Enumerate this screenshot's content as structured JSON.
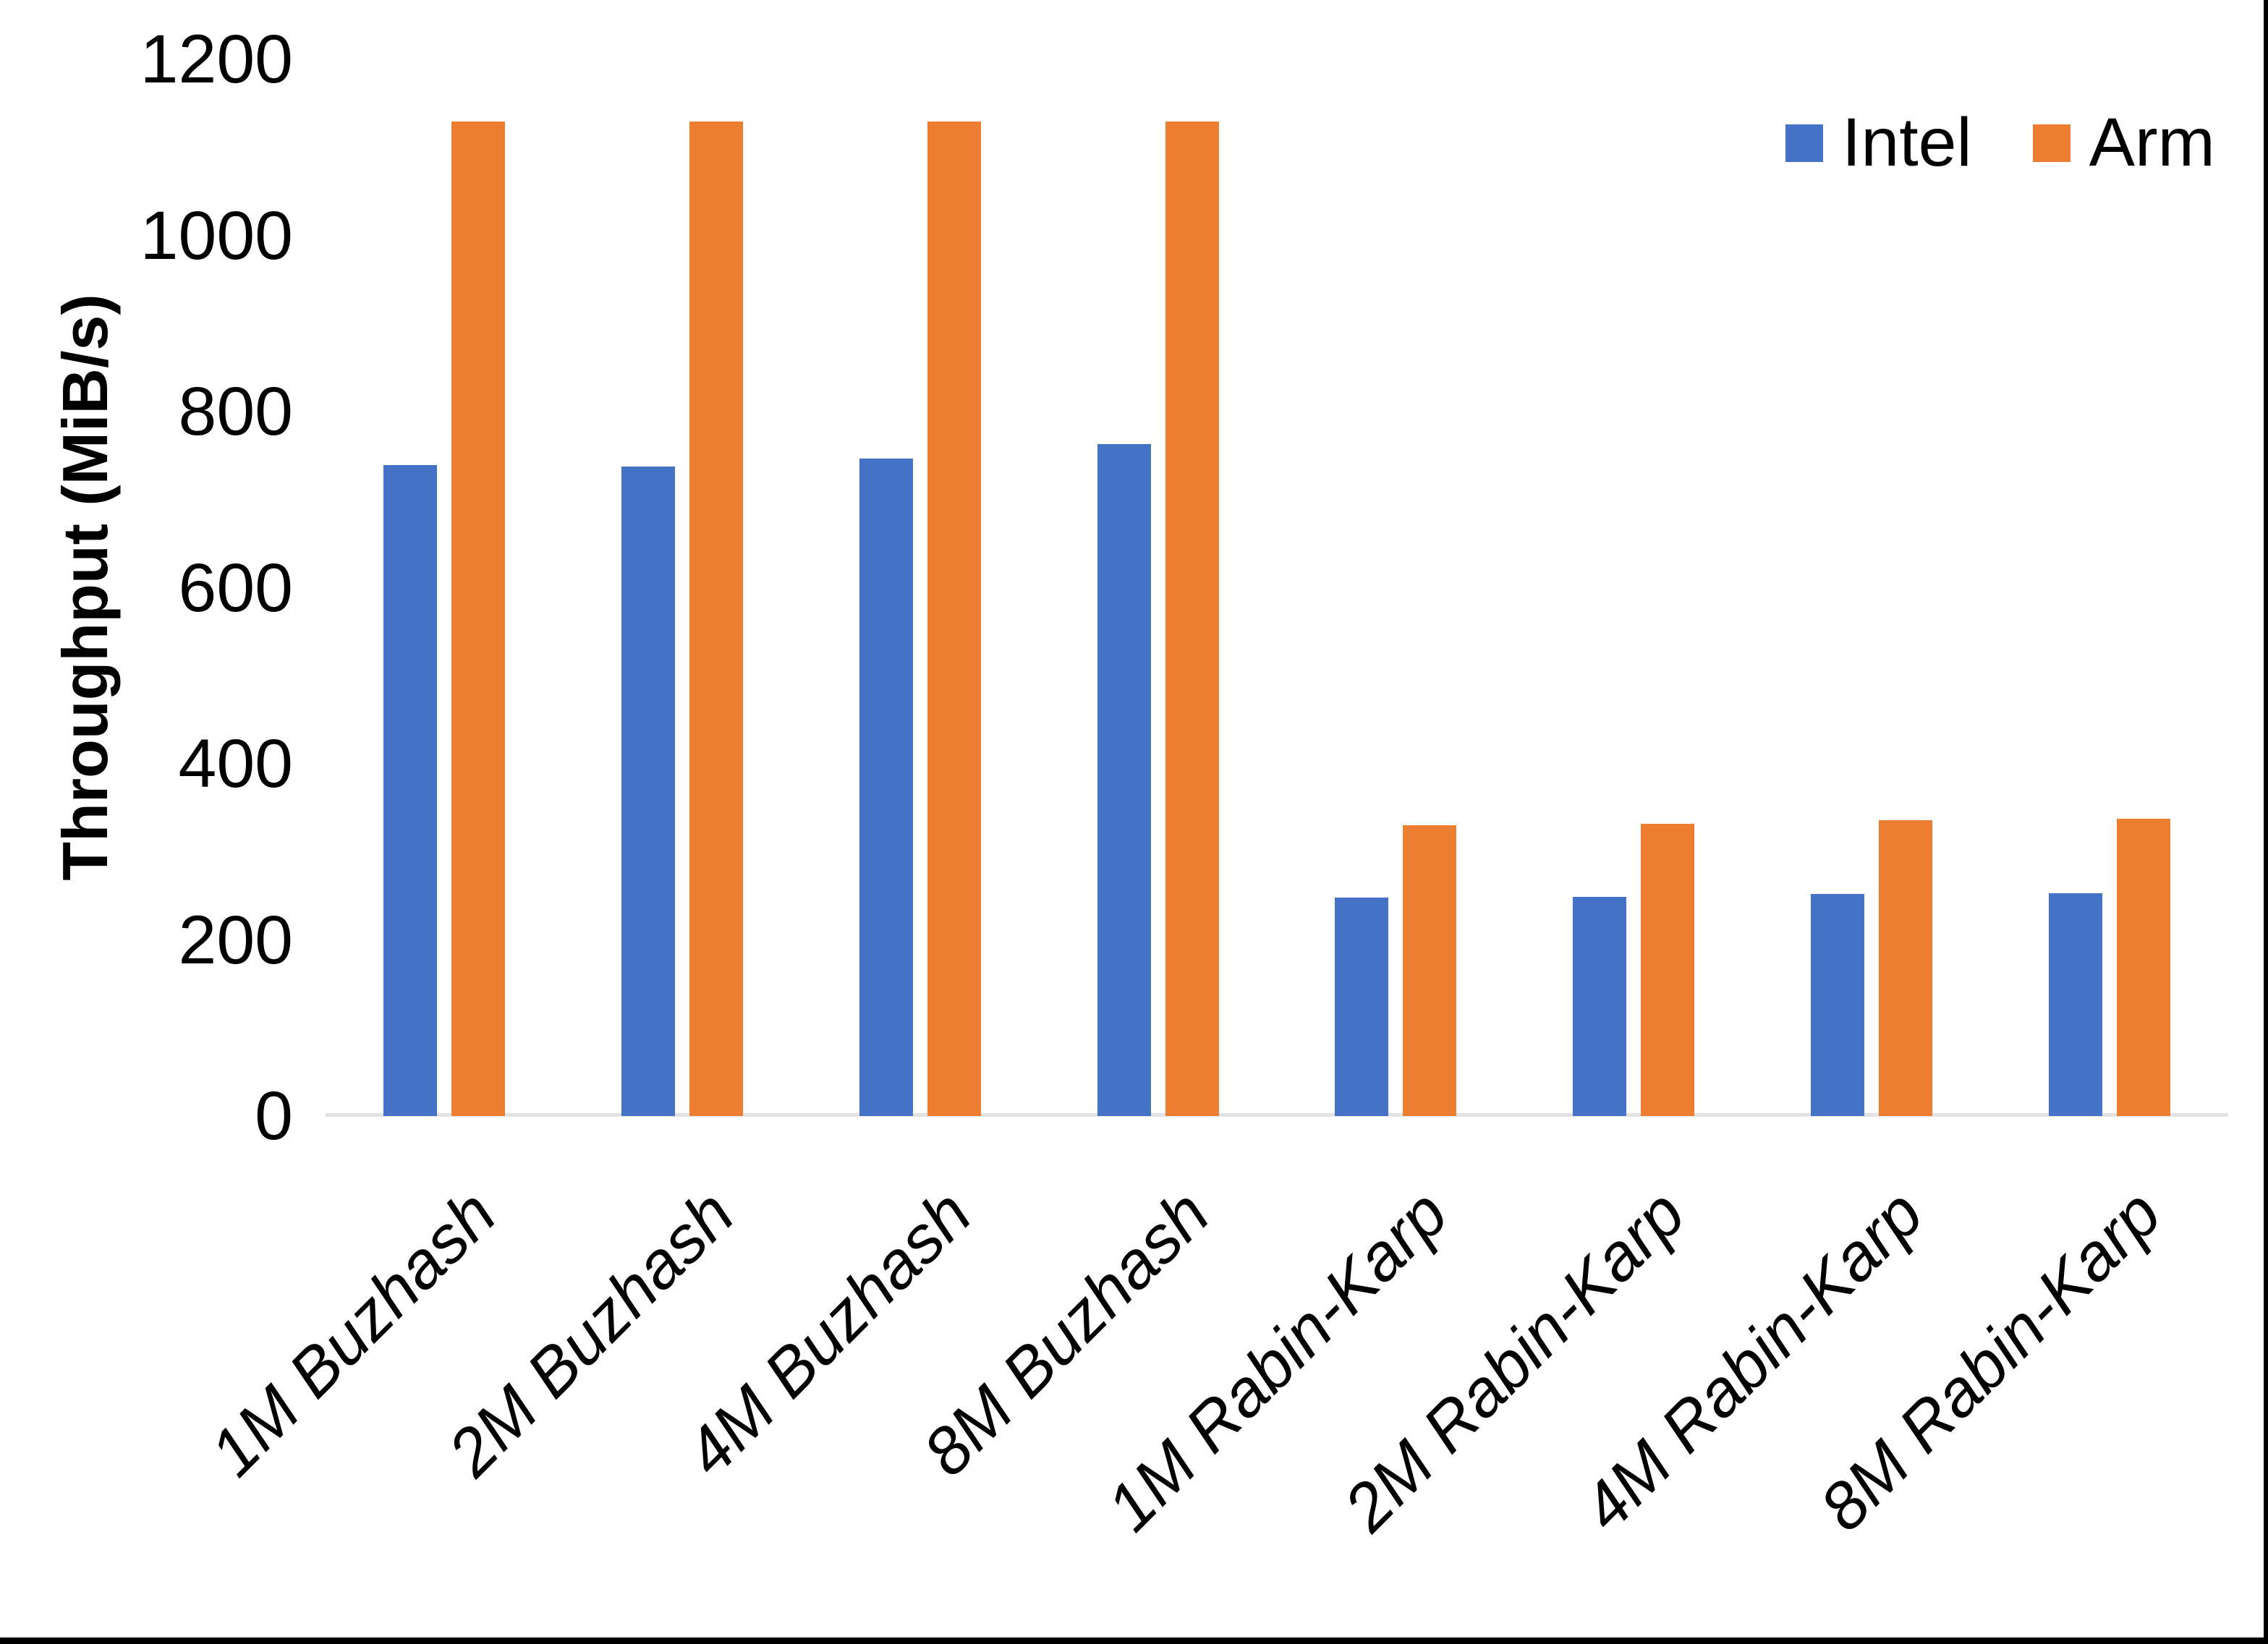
{
  "figure": {
    "background": "#ffffff",
    "frame_color": "#000000",
    "axis_line_color": "#e2e2e2",
    "text_color": "#000000"
  },
  "legend": {
    "items": [
      {
        "label": "Intel",
        "color": "#4472C4"
      },
      {
        "label": "Arm",
        "color": "#ED7D31"
      }
    ]
  },
  "chart_data": {
    "type": "bar",
    "title": "",
    "categories": [
      "1M Buzhash",
      "2M Buzhash",
      "4M Buzhash",
      "8M Buzhash",
      "1M Rabin-Karp",
      "2M Rabin-Karp",
      "4M Rabin-Karp",
      "8M Rabin-Karp"
    ],
    "series": [
      {
        "name": "Intel",
        "color": "#4472C4",
        "values": [
          739,
          738,
          747,
          763,
          248,
          249,
          252,
          253
        ]
      },
      {
        "name": "Arm",
        "color": "#ED7D31",
        "values": [
          1129,
          1129,
          1129,
          1129,
          330,
          332,
          336,
          338
        ]
      }
    ],
    "xlabel": "",
    "ylabel": "Throughput (MiB/s)",
    "ylim": [
      0,
      1200
    ],
    "yticks": [
      0,
      200,
      400,
      600,
      800,
      1000,
      1200
    ],
    "grid": false,
    "legend_position": "top-right"
  }
}
